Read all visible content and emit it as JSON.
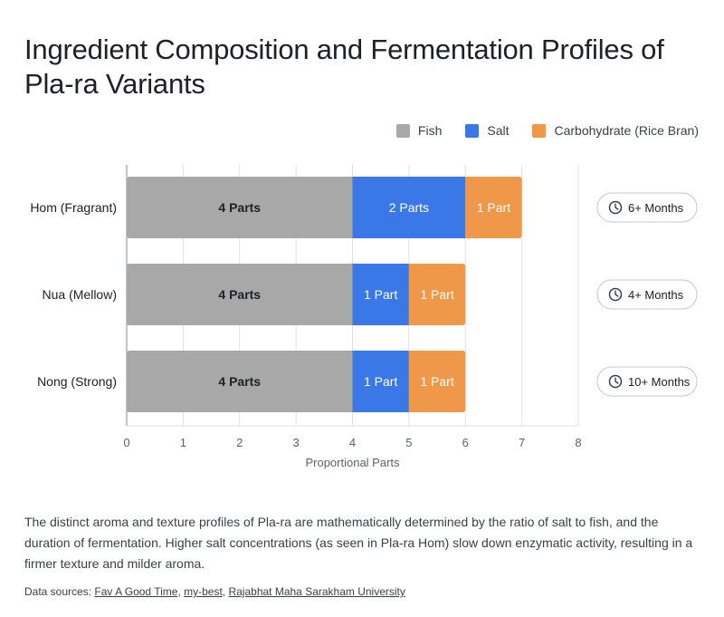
{
  "chart_data": {
    "type": "bar",
    "orientation": "horizontal",
    "stacked": true,
    "title": "Ingredient Composition and Fermentation Profiles of Pla-ra Variants",
    "categories": [
      "Hom (Fragrant)",
      "Nua (Mellow)",
      "Nong (Strong)"
    ],
    "series": [
      {
        "name": "Fish",
        "color": "#a8a8a8",
        "values": [
          4,
          4,
          4
        ],
        "labels": [
          "4 Parts",
          "4 Parts",
          "4 Parts"
        ]
      },
      {
        "name": "Salt",
        "color": "#3b78e7",
        "values": [
          2,
          1,
          1
        ],
        "labels": [
          "2 Parts",
          "1 Part",
          "1 Part"
        ]
      },
      {
        "name": "Carbohydrate (Rice Bran)",
        "color": "#f0984a",
        "values": [
          1,
          1,
          1
        ],
        "labels": [
          "1 Part",
          "1 Part",
          "1 Part"
        ]
      }
    ],
    "xlabel": "Proportional Parts",
    "ylabel": "",
    "xlim": [
      0,
      8
    ],
    "xticks": [
      0,
      1,
      2,
      3,
      4,
      5,
      6,
      7,
      8
    ],
    "grid": true,
    "legend": "top-right",
    "annotations": [
      "6+ Months",
      "4+ Months",
      "10+ Months"
    ],
    "annotation_icon": "clock-icon"
  },
  "description": "The distinct aroma and texture profiles of Pla-ra are mathematically determined by the ratio of salt to fish, and the duration of fermentation. Higher salt concentrations (as seen in Pla-ra Hom) slow down enzymatic activity, resulting in a firmer texture and milder aroma.",
  "sources": {
    "label": "Data sources:",
    "links": [
      "Fav A Good Time",
      "my-best",
      "Rajabhat Maha Sarakham University"
    ]
  }
}
